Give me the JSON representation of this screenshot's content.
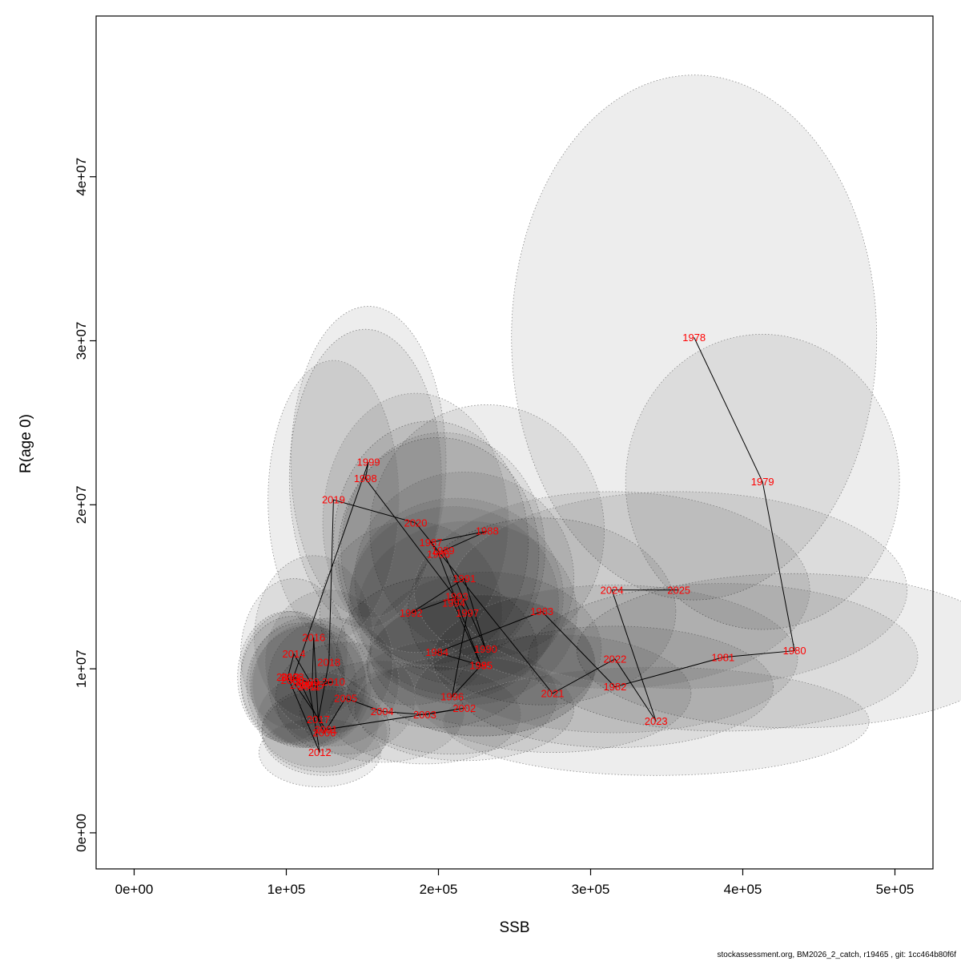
{
  "figure": {
    "xlabel": "SSB",
    "ylabel": "R(age 0)",
    "footer": "stockassessment.org, BM2026_2_catch, r19465 , git: 1cc464b80f6f"
  },
  "chart_data": {
    "type": "scatter",
    "title": "",
    "xlabel": "SSB",
    "ylabel": "R(age 0)",
    "xlim": [
      -25000,
      525000
    ],
    "ylim": [
      -2200000,
      49800000
    ],
    "grid": false,
    "legend": "none",
    "xticks": [
      {
        "v": 0,
        "label": "0e+00"
      },
      {
        "v": 100000,
        "label": "1e+05"
      },
      {
        "v": 200000,
        "label": "2e+05"
      },
      {
        "v": 300000,
        "label": "3e+05"
      },
      {
        "v": 400000,
        "label": "4e+05"
      },
      {
        "v": 500000,
        "label": "5e+05"
      }
    ],
    "yticks": [
      {
        "v": 0,
        "label": "0e+00"
      },
      {
        "v": 10000000,
        "label": "1e+07"
      },
      {
        "v": 20000000,
        "label": "2e+07"
      },
      {
        "v": 30000000,
        "label": "3e+07"
      },
      {
        "v": 40000000,
        "label": "4e+07"
      }
    ],
    "colors": {
      "label": "#ff0000",
      "line": "#000000",
      "frame": "#000000",
      "ellipse_fill": "#000000",
      "ellipse_stroke": "#8a8a8a",
      "ellipse_opacity": 0.07
    },
    "points": [
      {
        "year": 1978,
        "ssb": 368000,
        "rec": 30200000,
        "rx": 120000,
        "ry": 16000000
      },
      {
        "year": 1979,
        "ssb": 413000,
        "rec": 21400000,
        "rx": 90000,
        "ry": 9000000
      },
      {
        "year": 1980,
        "ssb": 434000,
        "rec": 11100000,
        "rx": 143000,
        "ry": 4700000
      },
      {
        "year": 1981,
        "ssb": 387000,
        "rec": 10700000,
        "rx": 128000,
        "ry": 4500000
      },
      {
        "year": 1982,
        "ssb": 316000,
        "rec": 8900000,
        "rx": 104000,
        "ry": 3700000
      },
      {
        "year": 1983,
        "ssb": 268000,
        "rec": 13500000,
        "rx": 88000,
        "ry": 5700000
      },
      {
        "year": 1984,
        "ssb": 199000,
        "rec": 11000000,
        "rx": 66000,
        "ry": 4600000
      },
      {
        "year": 1985,
        "ssb": 228000,
        "rec": 10200000,
        "rx": 75000,
        "ry": 4300000
      },
      {
        "year": 1986,
        "ssb": 200000,
        "rec": 17000000,
        "rx": 66000,
        "ry": 7100000
      },
      {
        "year": 1987,
        "ssb": 195000,
        "rec": 17700000,
        "rx": 64000,
        "ry": 7400000
      },
      {
        "year": 1988,
        "ssb": 232000,
        "rec": 18400000,
        "rx": 77000,
        "ry": 7700000
      },
      {
        "year": 1989,
        "ssb": 203000,
        "rec": 17200000,
        "rx": 67000,
        "ry": 7200000
      },
      {
        "year": 1990,
        "ssb": 231000,
        "rec": 11200000,
        "rx": 76000,
        "ry": 4700000
      },
      {
        "year": 1991,
        "ssb": 217000,
        "rec": 15500000,
        "rx": 72000,
        "ry": 6500000
      },
      {
        "year": 1992,
        "ssb": 182000,
        "rec": 13400000,
        "rx": 60000,
        "ry": 5600000
      },
      {
        "year": 1993,
        "ssb": 212000,
        "rec": 14400000,
        "rx": 70000,
        "ry": 6000000
      },
      {
        "year": 1994,
        "ssb": 210000,
        "rec": 14000000,
        "rx": 69000,
        "ry": 5900000
      },
      {
        "year": 1995,
        "ssb": 228000,
        "rec": 10200000,
        "rx": 75000,
        "ry": 4300000
      },
      {
        "year": 1996,
        "ssb": 209000,
        "rec": 8300000,
        "rx": 69000,
        "ry": 3500000
      },
      {
        "year": 1997,
        "ssb": 219000,
        "rec": 13400000,
        "rx": 72000,
        "ry": 5600000
      },
      {
        "year": 1998,
        "ssb": 152000,
        "rec": 21600000,
        "rx": 50000,
        "ry": 9100000
      },
      {
        "year": 1999,
        "ssb": 154000,
        "rec": 22600000,
        "rx": 51000,
        "ry": 9500000
      },
      {
        "year": 2000,
        "ssb": 104000,
        "rec": 9300000,
        "rx": 34000,
        "ry": 3900000
      },
      {
        "year": 2001,
        "ssb": 126000,
        "rec": 6300000,
        "rx": 42000,
        "ry": 2600000
      },
      {
        "year": 2002,
        "ssb": 217000,
        "rec": 7600000,
        "rx": 72000,
        "ry": 3200000
      },
      {
        "year": 2003,
        "ssb": 191000,
        "rec": 7200000,
        "rx": 63000,
        "ry": 3000000
      },
      {
        "year": 2004,
        "ssb": 163000,
        "rec": 7400000,
        "rx": 54000,
        "ry": 3100000
      },
      {
        "year": 2005,
        "ssb": 139000,
        "rec": 8200000,
        "rx": 46000,
        "ry": 3400000
      },
      {
        "year": 2006,
        "ssb": 125000,
        "rec": 6100000,
        "rx": 41000,
        "ry": 2600000
      },
      {
        "year": 2007,
        "ssb": 110000,
        "rec": 9000000,
        "rx": 36000,
        "ry": 3800000
      },
      {
        "year": 2008,
        "ssb": 104000,
        "rec": 9500000,
        "rx": 34000,
        "ry": 4000000
      },
      {
        "year": 2009,
        "ssb": 114000,
        "rec": 9200000,
        "rx": 38000,
        "ry": 3900000
      },
      {
        "year": 2010,
        "ssb": 131000,
        "rec": 9200000,
        "rx": 43000,
        "ry": 3900000
      },
      {
        "year": 2011,
        "ssb": 115000,
        "rec": 8900000,
        "rx": 38000,
        "ry": 3700000
      },
      {
        "year": 2012,
        "ssb": 122000,
        "rec": 4900000,
        "rx": 40000,
        "ry": 2100000
      },
      {
        "year": 2013,
        "ssb": 101000,
        "rec": 9500000,
        "rx": 33000,
        "ry": 4000000
      },
      {
        "year": 2014,
        "ssb": 105000,
        "rec": 10900000,
        "rx": 35000,
        "ry": 4600000
      },
      {
        "year": 2015,
        "ssb": 117000,
        "rec": 9000000,
        "rx": 39000,
        "ry": 3800000
      },
      {
        "year": 2016,
        "ssb": 118000,
        "rec": 11900000,
        "rx": 39000,
        "ry": 5000000
      },
      {
        "year": 2017,
        "ssb": 121000,
        "rec": 6900000,
        "rx": 40000,
        "ry": 2900000
      },
      {
        "year": 2018,
        "ssb": 128000,
        "rec": 10400000,
        "rx": 42000,
        "ry": 4400000
      },
      {
        "year": 2019,
        "ssb": 131000,
        "rec": 20300000,
        "rx": 43000,
        "ry": 8500000
      },
      {
        "year": 2020,
        "ssb": 185000,
        "rec": 18900000,
        "rx": 61000,
        "ry": 7900000
      },
      {
        "year": 2021,
        "ssb": 275000,
        "rec": 8500000,
        "rx": 91000,
        "ry": 3600000
      },
      {
        "year": 2022,
        "ssb": 316000,
        "rec": 10600000,
        "rx": 120000,
        "ry": 4500000
      },
      {
        "year": 2023,
        "ssb": 343000,
        "rec": 6800000,
        "rx": 140000,
        "ry": 3300000
      },
      {
        "year": 2024,
        "ssb": 314000,
        "rec": 14800000,
        "rx": 130000,
        "ry": 6000000
      },
      {
        "year": 2025,
        "ssb": 358000,
        "rec": 14800000,
        "rx": 150000,
        "ry": 6000000
      }
    ]
  }
}
